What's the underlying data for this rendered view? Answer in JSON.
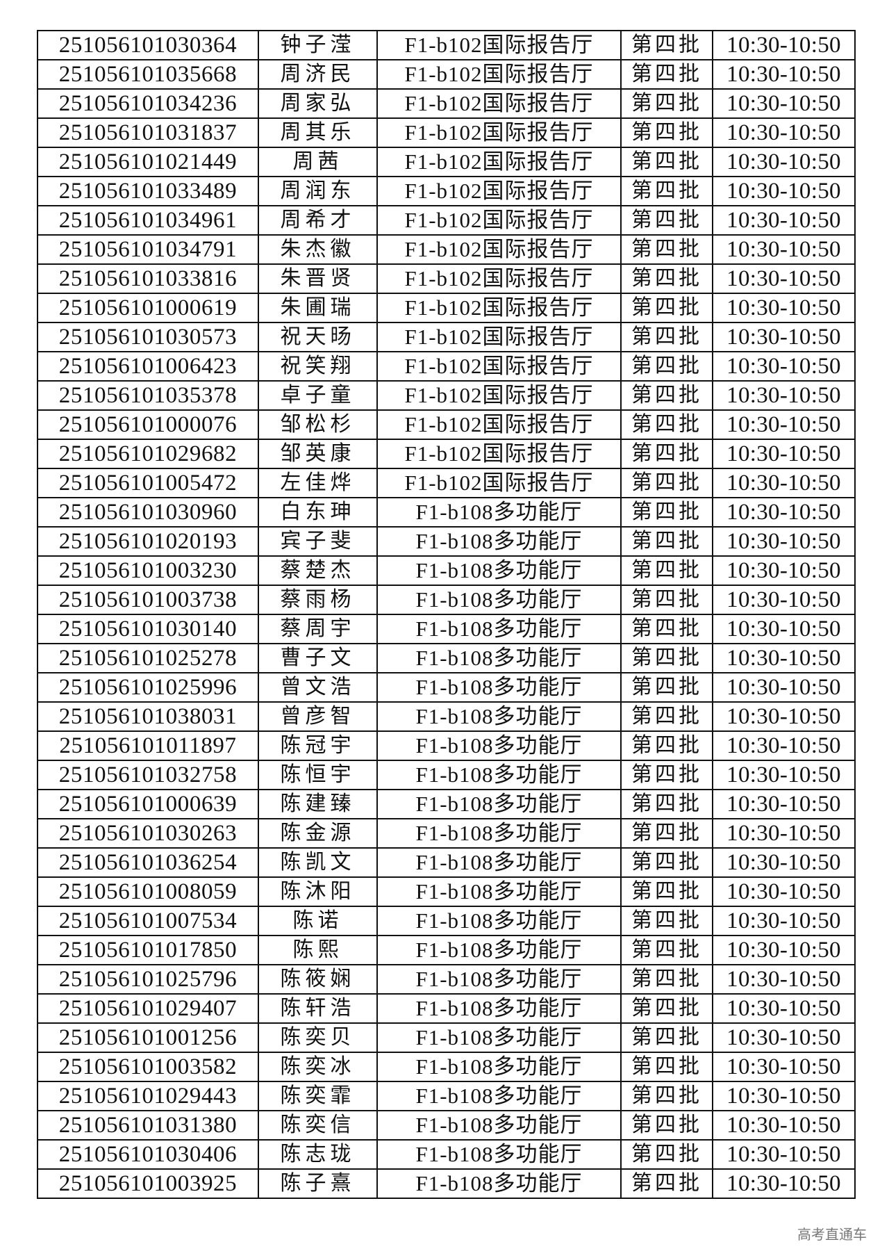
{
  "table": {
    "rows": [
      [
        "251056101030364",
        "钟子滢",
        "F1-b102国际报告厅",
        "第四批",
        "10:30-10:50"
      ],
      [
        "251056101035668",
        "周济民",
        "F1-b102国际报告厅",
        "第四批",
        "10:30-10:50"
      ],
      [
        "251056101034236",
        "周家弘",
        "F1-b102国际报告厅",
        "第四批",
        "10:30-10:50"
      ],
      [
        "251056101031837",
        "周其乐",
        "F1-b102国际报告厅",
        "第四批",
        "10:30-10:50"
      ],
      [
        "251056101021449",
        "周茜",
        "F1-b102国际报告厅",
        "第四批",
        "10:30-10:50"
      ],
      [
        "251056101033489",
        "周润东",
        "F1-b102国际报告厅",
        "第四批",
        "10:30-10:50"
      ],
      [
        "251056101034961",
        "周希才",
        "F1-b102国际报告厅",
        "第四批",
        "10:30-10:50"
      ],
      [
        "251056101034791",
        "朱杰徽",
        "F1-b102国际报告厅",
        "第四批",
        "10:30-10:50"
      ],
      [
        "251056101033816",
        "朱晋贤",
        "F1-b102国际报告厅",
        "第四批",
        "10:30-10:50"
      ],
      [
        "251056101000619",
        "朱圃瑞",
        "F1-b102国际报告厅",
        "第四批",
        "10:30-10:50"
      ],
      [
        "251056101030573",
        "祝天旸",
        "F1-b102国际报告厅",
        "第四批",
        "10:30-10:50"
      ],
      [
        "251056101006423",
        "祝笑翔",
        "F1-b102国际报告厅",
        "第四批",
        "10:30-10:50"
      ],
      [
        "251056101035378",
        "卓子童",
        "F1-b102国际报告厅",
        "第四批",
        "10:30-10:50"
      ],
      [
        "251056101000076",
        "邹松杉",
        "F1-b102国际报告厅",
        "第四批",
        "10:30-10:50"
      ],
      [
        "251056101029682",
        "邹英康",
        "F1-b102国际报告厅",
        "第四批",
        "10:30-10:50"
      ],
      [
        "251056101005472",
        "左佳烨",
        "F1-b102国际报告厅",
        "第四批",
        "10:30-10:50"
      ],
      [
        "251056101030960",
        "白东珅",
        "F1-b108多功能厅",
        "第四批",
        "10:30-10:50"
      ],
      [
        "251056101020193",
        "宾子斐",
        "F1-b108多功能厅",
        "第四批",
        "10:30-10:50"
      ],
      [
        "251056101003230",
        "蔡楚杰",
        "F1-b108多功能厅",
        "第四批",
        "10:30-10:50"
      ],
      [
        "251056101003738",
        "蔡雨杨",
        "F1-b108多功能厅",
        "第四批",
        "10:30-10:50"
      ],
      [
        "251056101030140",
        "蔡周宇",
        "F1-b108多功能厅",
        "第四批",
        "10:30-10:50"
      ],
      [
        "251056101025278",
        "曹子文",
        "F1-b108多功能厅",
        "第四批",
        "10:30-10:50"
      ],
      [
        "251056101025996",
        "曾文浩",
        "F1-b108多功能厅",
        "第四批",
        "10:30-10:50"
      ],
      [
        "251056101038031",
        "曾彦智",
        "F1-b108多功能厅",
        "第四批",
        "10:30-10:50"
      ],
      [
        "251056101011897",
        "陈冠宇",
        "F1-b108多功能厅",
        "第四批",
        "10:30-10:50"
      ],
      [
        "251056101032758",
        "陈恒宇",
        "F1-b108多功能厅",
        "第四批",
        "10:30-10:50"
      ],
      [
        "251056101000639",
        "陈建臻",
        "F1-b108多功能厅",
        "第四批",
        "10:30-10:50"
      ],
      [
        "251056101030263",
        "陈金源",
        "F1-b108多功能厅",
        "第四批",
        "10:30-10:50"
      ],
      [
        "251056101036254",
        "陈凯文",
        "F1-b108多功能厅",
        "第四批",
        "10:30-10:50"
      ],
      [
        "251056101008059",
        "陈沐阳",
        "F1-b108多功能厅",
        "第四批",
        "10:30-10:50"
      ],
      [
        "251056101007534",
        "陈诺",
        "F1-b108多功能厅",
        "第四批",
        "10:30-10:50"
      ],
      [
        "251056101017850",
        "陈熙",
        "F1-b108多功能厅",
        "第四批",
        "10:30-10:50"
      ],
      [
        "251056101025796",
        "陈筱娴",
        "F1-b108多功能厅",
        "第四批",
        "10:30-10:50"
      ],
      [
        "251056101029407",
        "陈轩浩",
        "F1-b108多功能厅",
        "第四批",
        "10:30-10:50"
      ],
      [
        "251056101001256",
        "陈奕贝",
        "F1-b108多功能厅",
        "第四批",
        "10:30-10:50"
      ],
      [
        "251056101003582",
        "陈奕冰",
        "F1-b108多功能厅",
        "第四批",
        "10:30-10:50"
      ],
      [
        "251056101029443",
        "陈奕霏",
        "F1-b108多功能厅",
        "第四批",
        "10:30-10:50"
      ],
      [
        "251056101031380",
        "陈奕信",
        "F1-b108多功能厅",
        "第四批",
        "10:30-10:50"
      ],
      [
        "251056101030406",
        "陈志珑",
        "F1-b108多功能厅",
        "第四批",
        "10:30-10:50"
      ],
      [
        "251056101003925",
        "陈子熹",
        "F1-b108多功能厅",
        "第四批",
        "10:30-10:50"
      ]
    ]
  },
  "watermark": "高考直通车"
}
